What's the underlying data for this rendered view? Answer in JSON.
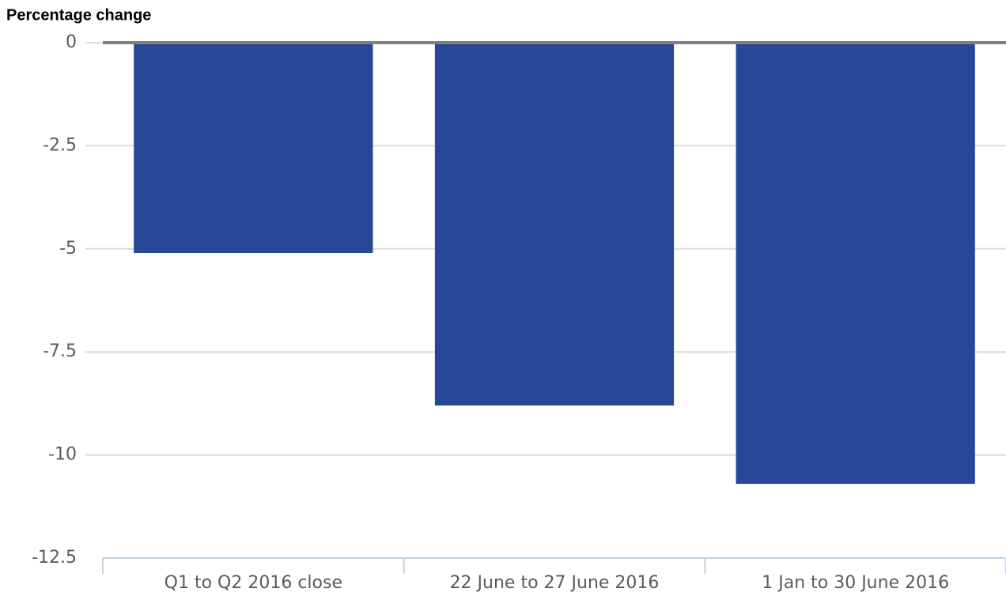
{
  "chart_data": {
    "type": "bar",
    "y_axis_label": "Percentage change",
    "categories": [
      "Q1 to Q2 2016 close",
      "22 June to 27 June 2016",
      "1 Jan to 30 June 2016"
    ],
    "values": [
      -5.1,
      -8.8,
      -10.7
    ],
    "color": "#274796",
    "ylim": [
      -12.5,
      0
    ],
    "yticks": [
      0,
      -2.5,
      -5,
      -7.5,
      -10,
      -12.5
    ],
    "grid": true
  }
}
